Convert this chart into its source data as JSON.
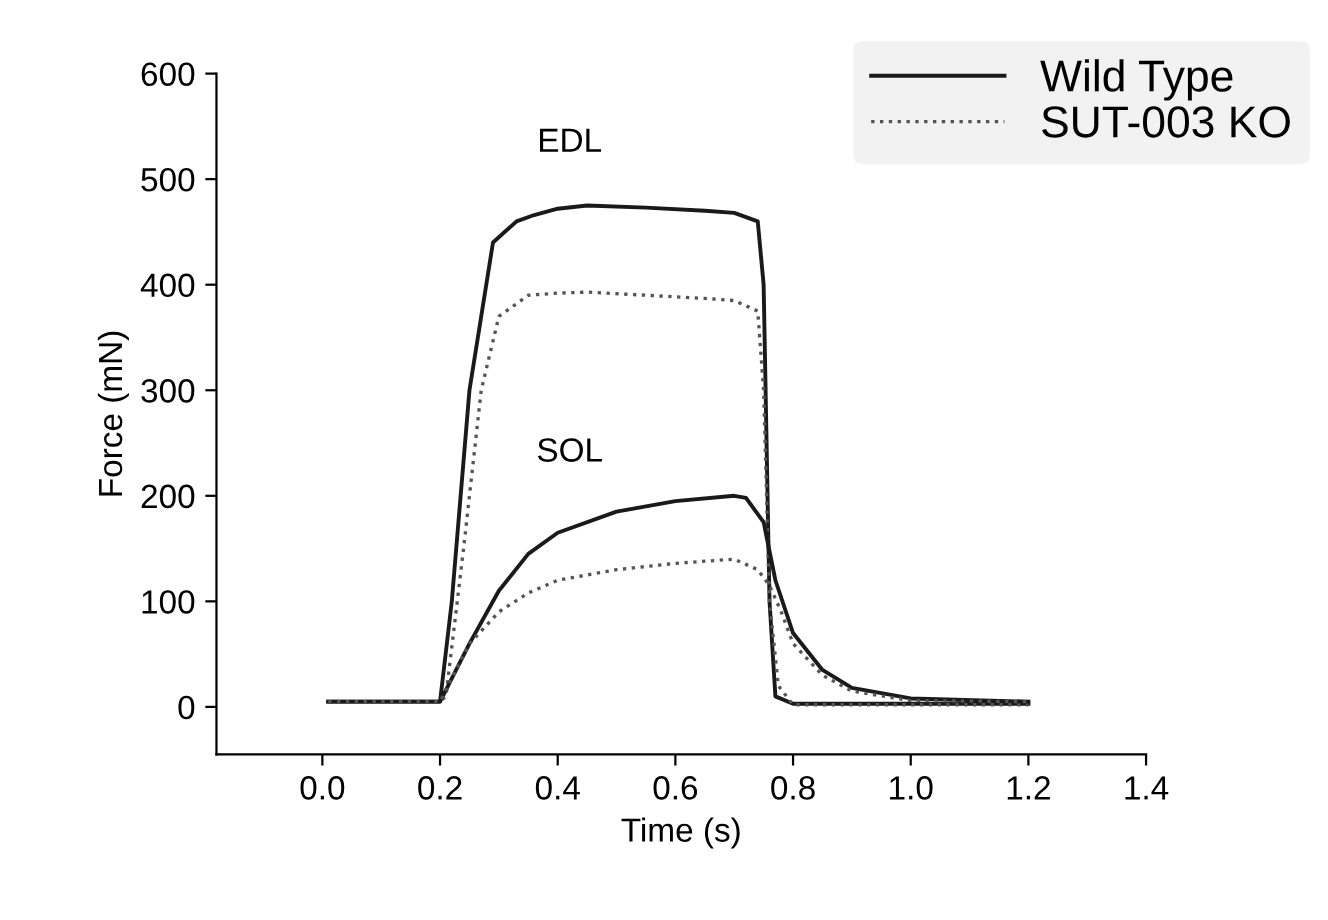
{
  "chart_data": {
    "type": "line",
    "xlabel": "Time (s)",
    "ylabel": "Force (mN)",
    "xlim": [
      -0.18,
      1.4
    ],
    "xticks": [
      {
        "value": 0,
        "label": "0.0"
      },
      {
        "value": 0.2,
        "label": "0.2"
      },
      {
        "value": 0.4,
        "label": "0.4"
      },
      {
        "value": 0.6,
        "label": "0.6"
      },
      {
        "value": 0.8,
        "label": "0.8"
      },
      {
        "value": 1,
        "label": "1.0"
      },
      {
        "value": 1.2,
        "label": "1.2"
      },
      {
        "value": 1.4,
        "label": "1.4"
      }
    ],
    "ylim": [
      -45,
      600
    ],
    "yticks": [
      0,
      100,
      200,
      300,
      400,
      500,
      600
    ],
    "grid": false,
    "legend": "top right",
    "annotations": [
      "EDL",
      "SOL"
    ],
    "series": [
      {
        "name": "Wild Type",
        "color": "#1a1a1a",
        "line_style": "solid",
        "x": [
          0.01,
          0.1,
          0.2,
          0.22,
          0.25,
          0.29,
          0.33,
          0.36,
          0.4,
          0.45,
          0.55,
          0.65,
          0.7,
          0.74,
          0.75,
          0.76,
          0.77,
          0.8,
          1.0,
          1.2
        ],
        "values": [
          5,
          5,
          5,
          100,
          300,
          440,
          460,
          466,
          472,
          475,
          473,
          470,
          468,
          460,
          400,
          100,
          10,
          3,
          3,
          3
        ]
      },
      {
        "name": "SUT-003 KO",
        "color": "#555555",
        "line_style": "dotted",
        "x": [
          0.01,
          0.1,
          0.2,
          0.21,
          0.24,
          0.27,
          0.3,
          0.35,
          0.4,
          0.45,
          0.55,
          0.65,
          0.7,
          0.74,
          0.75,
          0.76,
          0.775,
          0.8,
          1.0,
          1.2
        ],
        "values": [
          5,
          5,
          5,
          10,
          150,
          300,
          370,
          390,
          392,
          393,
          390,
          387,
          385,
          375,
          300,
          100,
          20,
          2,
          2,
          2
        ]
      },
      {
        "color": "#1a1a1a",
        "line_style": "solid",
        "x": [
          0.01,
          0.1,
          0.2,
          0.25,
          0.3,
          0.35,
          0.4,
          0.5,
          0.6,
          0.7,
          0.72,
          0.75,
          0.77,
          0.8,
          0.85,
          0.9,
          1.0,
          1.2
        ],
        "values": [
          5,
          5,
          5,
          60,
          110,
          145,
          165,
          185,
          195,
          200,
          198,
          175,
          120,
          70,
          35,
          18,
          8,
          5
        ]
      },
      {
        "color": "#555555",
        "line_style": "dotted",
        "x": [
          0.01,
          0.1,
          0.2,
          0.25,
          0.3,
          0.35,
          0.4,
          0.5,
          0.6,
          0.7,
          0.74,
          0.76,
          0.78,
          0.8,
          0.85,
          0.9,
          1.0,
          1.2
        ],
        "values": [
          5,
          5,
          5,
          60,
          90,
          108,
          120,
          130,
          136,
          140,
          130,
          115,
          90,
          60,
          30,
          15,
          6,
          5
        ]
      }
    ]
  }
}
